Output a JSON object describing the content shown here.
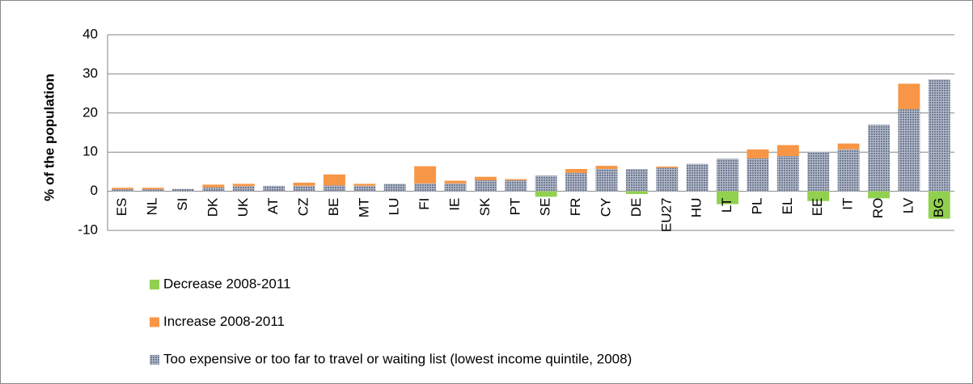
{
  "chart_data": {
    "type": "bar",
    "stacked": true,
    "y_label": "% of the population",
    "categories": [
      "ES",
      "NL",
      "SI",
      "DK",
      "UK",
      "AT",
      "CZ",
      "BE",
      "MT",
      "LU",
      "FI",
      "IE",
      "SK",
      "PT",
      "SE",
      "FR",
      "CY",
      "DE",
      "EU27",
      "HU",
      "LT",
      "PL",
      "EL",
      "EE",
      "IT",
      "RO",
      "LV",
      "BG"
    ],
    "series": [
      {
        "name": "Decrease 2008-2011",
        "color": "#92d050",
        "values": [
          null,
          null,
          null,
          null,
          null,
          null,
          null,
          null,
          null,
          null,
          null,
          null,
          null,
          null,
          -1.4,
          null,
          null,
          -0.7,
          null,
          null,
          -3.3,
          null,
          null,
          -2.5,
          null,
          -1.8,
          null,
          -7.0
        ]
      },
      {
        "name": "Increase 2008-2011",
        "color": "#f79646",
        "values": [
          0.4,
          0.4,
          null,
          0.7,
          0.6,
          null,
          0.8,
          2.8,
          0.5,
          null,
          4.4,
          0.7,
          0.9,
          0.3,
          null,
          1.0,
          0.8,
          null,
          0.3,
          null,
          null,
          2.3,
          2.8,
          null,
          1.5,
          null,
          6.5,
          null
        ]
      },
      {
        "name": "Too expensive or too far to travel or waiting list  (lowest income quintile, 2008)",
        "color": "#8e98aa",
        "values": [
          0.5,
          0.5,
          0.6,
          1.0,
          1.3,
          1.4,
          1.4,
          1.5,
          1.4,
          1.9,
          2.0,
          2.0,
          2.8,
          2.8,
          4.0,
          4.7,
          5.7,
          5.7,
          6.0,
          7.0,
          8.3,
          8.4,
          9.0,
          10.0,
          10.7,
          17.0,
          21.0,
          28.6
        ]
      }
    ],
    "ylim": [
      -10,
      40
    ],
    "yticks": [
      -10,
      0,
      10,
      20,
      30,
      40
    ],
    "grid": true
  }
}
